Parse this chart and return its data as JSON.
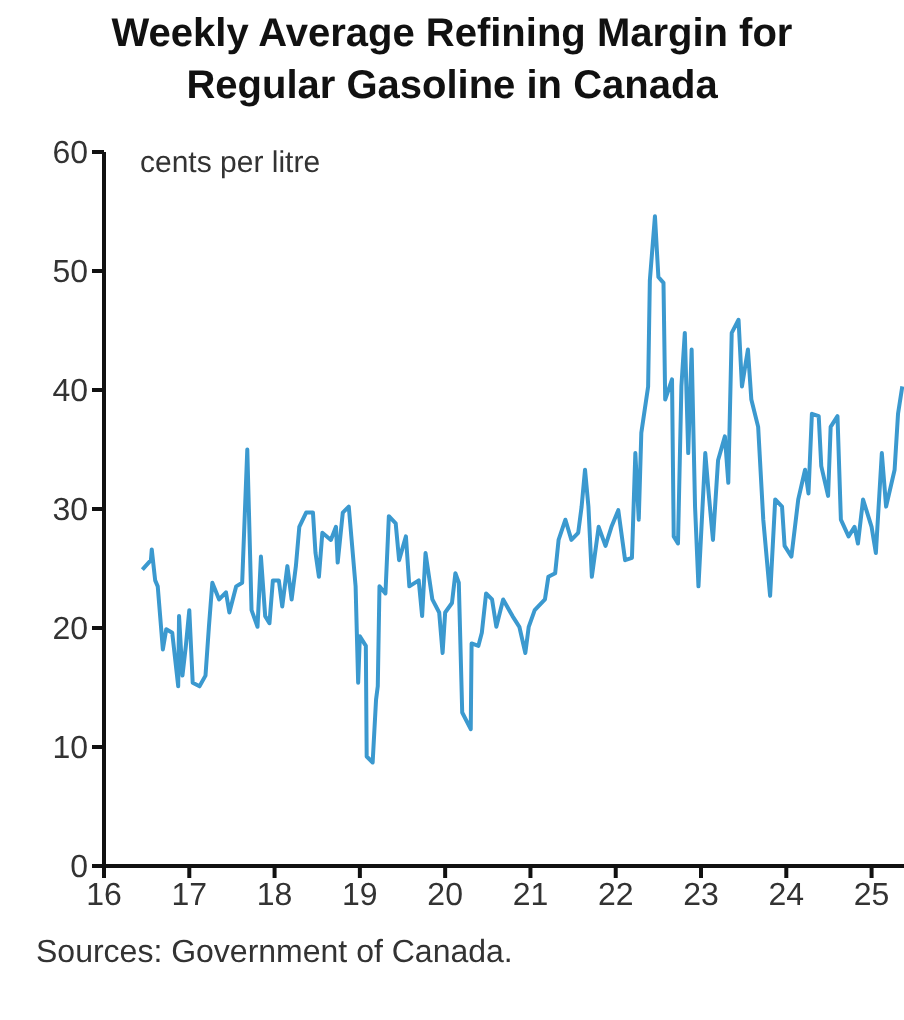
{
  "chart_data": {
    "type": "line",
    "title": "Weekly Average Refining Margin for Regular Gasoline in Canada",
    "ylabel": "cents per litre",
    "annotations": [
      "Sources: Government of Canada."
    ],
    "xlim": [
      16,
      25.38
    ],
    "xticks": [
      16,
      17,
      18,
      19,
      20,
      21,
      22,
      23,
      24,
      25
    ],
    "ylim": [
      0,
      60
    ],
    "yticks": [
      0,
      10,
      20,
      30,
      40,
      50,
      60
    ],
    "marker": "none",
    "line_style": "solid",
    "series": [
      {
        "color": "#3b99cf",
        "x": [
          16.45,
          16.55,
          16.56,
          16.6,
          16.63,
          16.69,
          16.73,
          16.8,
          16.87,
          16.88,
          16.92,
          16.96,
          17.0,
          17.04,
          17.12,
          17.19,
          17.23,
          17.27,
          17.35,
          17.43,
          17.47,
          17.55,
          17.62,
          17.68,
          17.73,
          17.8,
          17.84,
          17.89,
          17.94,
          17.98,
          18.05,
          18.09,
          18.15,
          18.2,
          18.25,
          18.29,
          18.37,
          18.45,
          18.48,
          18.52,
          18.56,
          18.66,
          18.72,
          18.74,
          18.8,
          18.87,
          18.95,
          18.98,
          19.0,
          19.07,
          19.08,
          19.15,
          19.19,
          19.21,
          19.23,
          19.3,
          19.34,
          19.42,
          19.46,
          19.54,
          19.58,
          19.69,
          19.73,
          19.77,
          19.85,
          19.93,
          19.97,
          20.0,
          20.08,
          20.12,
          20.16,
          20.2,
          20.3,
          20.31,
          20.39,
          20.43,
          20.48,
          20.55,
          20.6,
          20.68,
          20.79,
          20.87,
          20.94,
          20.98,
          21.05,
          21.17,
          21.21,
          21.29,
          21.33,
          21.41,
          21.48,
          21.56,
          21.6,
          21.64,
          21.68,
          21.72,
          21.8,
          21.88,
          21.95,
          22.03,
          22.11,
          22.19,
          22.23,
          22.27,
          22.3,
          22.38,
          22.4,
          22.46,
          22.5,
          22.56,
          22.58,
          22.66,
          22.68,
          22.73,
          22.77,
          22.81,
          22.85,
          22.89,
          22.93,
          22.97,
          23.05,
          23.09,
          23.14,
          23.2,
          23.28,
          23.32,
          23.36,
          23.44,
          23.48,
          23.55,
          23.59,
          23.67,
          23.73,
          23.81,
          23.87,
          23.95,
          23.98,
          24.06,
          24.14,
          24.22,
          24.26,
          24.3,
          24.38,
          24.41,
          24.49,
          24.52,
          24.6,
          24.64,
          24.73,
          24.8,
          24.84,
          24.9,
          25.0,
          25.05,
          25.12,
          25.17,
          25.27,
          25.31,
          25.36
        ],
        "values": [
          24.9,
          25.7,
          26.6,
          24,
          23.5,
          18.2,
          19.9,
          19.6,
          15.1,
          21,
          16,
          18.5,
          21.5,
          15.4,
          15.1,
          16,
          20.1,
          23.8,
          22.4,
          23,
          21.3,
          23.5,
          23.8,
          35,
          21.5,
          20.1,
          26,
          21,
          20.4,
          24,
          24,
          21.8,
          25.2,
          22.4,
          25.2,
          28.5,
          29.7,
          29.7,
          26.3,
          24.3,
          28,
          27.4,
          28.5,
          25.5,
          29.7,
          30.2,
          23.5,
          15.4,
          19.3,
          18.5,
          9.2,
          8.7,
          14,
          15.1,
          23.5,
          22.9,
          29.4,
          28.8,
          25.7,
          27.7,
          23.5,
          24,
          21,
          26.3,
          22.4,
          21.3,
          17.9,
          21.3,
          22.1,
          24.6,
          23.8,
          12.9,
          11.5,
          18.7,
          18.5,
          19.6,
          22.9,
          22.4,
          20.1,
          22.4,
          21,
          20.1,
          17.9,
          20.1,
          21.5,
          22.4,
          24.3,
          24.6,
          27.4,
          29.1,
          27.4,
          28,
          30.2,
          33.3,
          30.2,
          24.3,
          28.5,
          26.9,
          28.5,
          29.9,
          25.7,
          25.9,
          34.7,
          29.1,
          36.4,
          40.3,
          49.2,
          54.6,
          49.5,
          49,
          39.2,
          40.9,
          27.7,
          27.1,
          40.3,
          44.8,
          34.7,
          43.4,
          30.2,
          23.5,
          34.7,
          31.3,
          27.4,
          34.1,
          36.1,
          32.2,
          44.8,
          45.9,
          40.3,
          43.4,
          39.2,
          36.9,
          29.1,
          22.7,
          30.8,
          30.2,
          26.9,
          26,
          30.8,
          33.3,
          31.3,
          38,
          37.8,
          33.6,
          31.1,
          36.9,
          37.8,
          29.1,
          27.7,
          28.5,
          27.1,
          30.8,
          28.5,
          26.3,
          34.7,
          30.2,
          33.3,
          38,
          40.3
        ]
      }
    ]
  }
}
